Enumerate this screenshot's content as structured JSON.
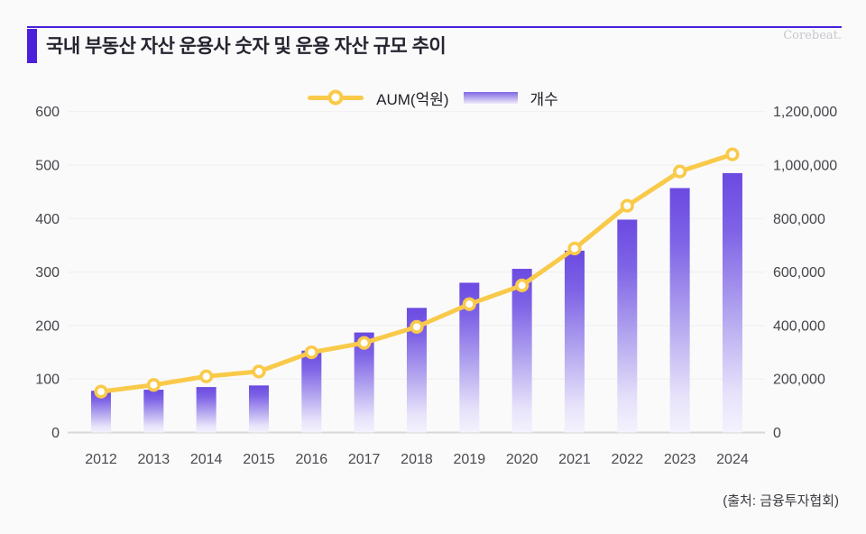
{
  "header": {
    "title": "국내 부동산 자산 운용사 숫자 및 운용 자산 규모 추이",
    "watermark": "Corebeat."
  },
  "legend": {
    "line_label": "AUM(억원)",
    "bar_label": "개수"
  },
  "source_note": "(출처: 금융투자협회)",
  "colors": {
    "accent": "#4a21d9",
    "line": "#f9ca4a",
    "marker_fill": "#ffffff",
    "bar_gradient": [
      "#6b4ae1",
      "#7e63e6",
      "#b4a6ef",
      "#e7e2fa",
      "#f4f2fd"
    ],
    "grid": "#efefef",
    "baseline": "#d8d8d8",
    "axis_text": "#45454c",
    "background": "#fafafa"
  },
  "chart_data": {
    "type": "combo",
    "title": "국내 부동산 자산 운용사 숫자 및 운용 자산 규모 추이",
    "categories": [
      "2012",
      "2013",
      "2014",
      "2015",
      "2016",
      "2017",
      "2018",
      "2019",
      "2020",
      "2021",
      "2022",
      "2023",
      "2024"
    ],
    "series": [
      {
        "name": "AUM(억원)",
        "chart": "line",
        "axis": "right",
        "values": [
          153000,
          178000,
          210000,
          228000,
          300000,
          335000,
          395000,
          480000,
          550000,
          688000,
          848000,
          976000,
          1040000
        ]
      },
      {
        "name": "개수",
        "chart": "bar",
        "axis": "left",
        "values": [
          78,
          80,
          85,
          88,
          153,
          187,
          233,
          280,
          306,
          340,
          398,
          457,
          485
        ]
      }
    ],
    "axes": {
      "left": {
        "min": 0,
        "max": 600,
        "ticks": [
          "0",
          "100",
          "200",
          "300",
          "400",
          "500",
          "600"
        ]
      },
      "right": {
        "min": 0,
        "max": 1200000,
        "ticks": [
          "0",
          "200,000",
          "400,000",
          "600,000",
          "800,000",
          "1,000,000",
          "1,200,000"
        ]
      }
    },
    "grid": true,
    "legend_position": "top-center",
    "xlabel": "",
    "ylabel_left": "개수",
    "ylabel_right": "AUM(억원)"
  }
}
